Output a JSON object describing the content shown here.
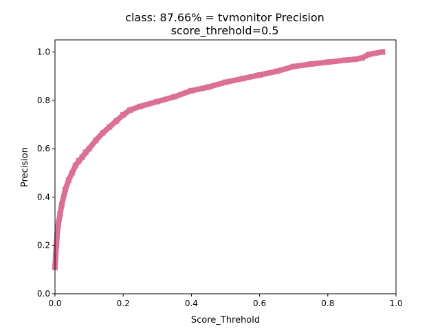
{
  "chart_data": {
    "type": "line",
    "title": "class: 87.66% = tvmonitor Precision",
    "subtitle": "score_threhold=0.5",
    "xlabel": "Score_Threhold",
    "ylabel": "Precision",
    "xlim": [
      0.0,
      1.0
    ],
    "ylim": [
      0.0,
      1.05
    ],
    "xticks": [
      "0.0",
      "0.2",
      "0.4",
      "0.6",
      "0.8",
      "1.0"
    ],
    "yticks": [
      "0.0",
      "0.2",
      "0.4",
      "0.6",
      "0.8",
      "1.0"
    ],
    "grid": false,
    "legend": "none",
    "series": [
      {
        "color": "#db7093",
        "x": [
          0.0,
          0.002,
          0.004,
          0.006,
          0.008,
          0.01,
          0.015,
          0.02,
          0.03,
          0.04,
          0.05,
          0.06,
          0.07,
          0.08,
          0.09,
          0.1,
          0.12,
          0.14,
          0.16,
          0.18,
          0.2,
          0.22,
          0.25,
          0.3,
          0.35,
          0.4,
          0.45,
          0.5,
          0.55,
          0.6,
          0.65,
          0.7,
          0.75,
          0.8,
          0.85,
          0.88,
          0.9,
          0.92,
          0.96
        ],
        "y": [
          0.11,
          0.16,
          0.2,
          0.24,
          0.27,
          0.29,
          0.33,
          0.37,
          0.43,
          0.47,
          0.5,
          0.53,
          0.55,
          0.565,
          0.585,
          0.6,
          0.635,
          0.665,
          0.69,
          0.715,
          0.74,
          0.76,
          0.775,
          0.795,
          0.815,
          0.84,
          0.855,
          0.875,
          0.89,
          0.905,
          0.92,
          0.94,
          0.95,
          0.958,
          0.966,
          0.97,
          0.975,
          0.99,
          1.0
        ]
      }
    ]
  }
}
